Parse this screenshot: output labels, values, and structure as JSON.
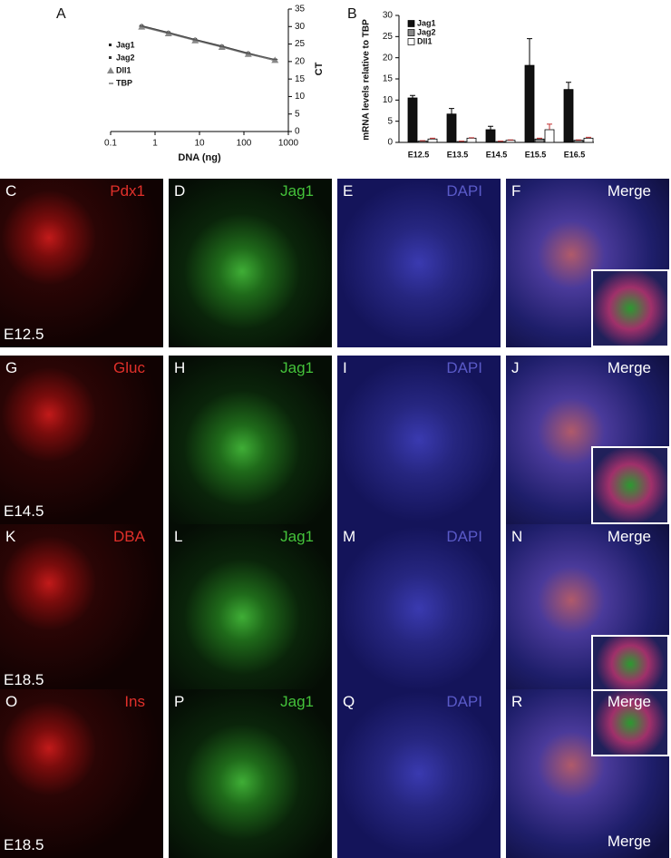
{
  "chart_data": [
    {
      "type": "line",
      "panel_label": "A",
      "x_label": "DNA (ng)",
      "y_label": "CT",
      "log_x": true,
      "xlim": [
        0.1,
        1000
      ],
      "xticks": [
        0.1,
        1,
        10,
        100,
        1000
      ],
      "ylim": [
        0,
        35
      ],
      "yticks": [
        0,
        5,
        10,
        15,
        20,
        25,
        30,
        35
      ],
      "x": [
        0.5,
        2,
        8,
        32,
        125,
        500
      ],
      "series": [
        {
          "name": "Jag1",
          "color": "#222222",
          "values": [
            30.2,
            28.3,
            26.3,
            24.4,
            22.4,
            20.5
          ]
        },
        {
          "name": "Jag2",
          "color": "#333333",
          "values": [
            30,
            28.1,
            26.1,
            24.2,
            22.2,
            20.3
          ]
        },
        {
          "name": "Dll1",
          "color": "#888888",
          "values": [
            29.9,
            28,
            26,
            24.1,
            22.1,
            20.4
          ]
        },
        {
          "name": "TBP",
          "color": "#555555",
          "values": [
            30.1,
            28.2,
            26.2,
            24.3,
            22.3,
            20.6
          ]
        }
      ]
    },
    {
      "type": "bar",
      "panel_label": "B",
      "y_label": "mRNA levels relative to TBP",
      "categories": [
        "E12.5",
        "E13.5",
        "E14.5",
        "E15.5",
        "E16.5"
      ],
      "ylim": [
        0,
        30
      ],
      "yticks": [
        0,
        5,
        10,
        15,
        20,
        25,
        30
      ],
      "series": [
        {
          "name": "Jag1",
          "color": "#111111",
          "values": [
            10.5,
            6.7,
            3,
            18.2,
            12.5
          ],
          "errors": [
            0.6,
            1.3,
            0.8,
            6.3,
            1.7
          ]
        },
        {
          "name": "Jag2",
          "color": "#888888",
          "values": [
            0.3,
            0.2,
            0.2,
            0.8,
            0.5
          ],
          "errors": [
            0.1,
            0.1,
            0.1,
            0.2,
            0.1
          ]
        },
        {
          "name": "Dll1",
          "color": "#ffffff",
          "values": [
            0.8,
            1,
            0.5,
            3,
            1
          ],
          "errors": [
            0.2,
            0.1,
            0.1,
            1.3,
            0.2
          ]
        }
      ]
    }
  ],
  "panels": {
    "rows": [
      {
        "stage": "E12.5",
        "cells": [
          {
            "letter": "C",
            "label": "Pdx1"
          },
          {
            "letter": "D",
            "label": "Jag1"
          },
          {
            "letter": "E",
            "label": "DAPI"
          },
          {
            "letter": "F",
            "label": "Merge"
          }
        ]
      },
      {
        "stage": "E14.5",
        "cells": [
          {
            "letter": "G",
            "label": "Gluc"
          },
          {
            "letter": "H",
            "label": "Jag1"
          },
          {
            "letter": "I",
            "label": "DAPI"
          },
          {
            "letter": "J",
            "label": "Merge"
          }
        ]
      },
      {
        "stage": "E18.5",
        "cells": [
          {
            "letter": "K",
            "label": "DBA"
          },
          {
            "letter": "L",
            "label": "Jag1"
          },
          {
            "letter": "M",
            "label": "DAPI"
          },
          {
            "letter": "N",
            "label": "Merge"
          }
        ]
      },
      {
        "stage": "E18.5",
        "cells": [
          {
            "letter": "O",
            "label": "Ins"
          },
          {
            "letter": "P",
            "label": "Jag1"
          },
          {
            "letter": "Q",
            "label": "DAPI"
          },
          {
            "letter": "R",
            "label": "Merge"
          }
        ],
        "extra_label": "Merge"
      }
    ]
  }
}
